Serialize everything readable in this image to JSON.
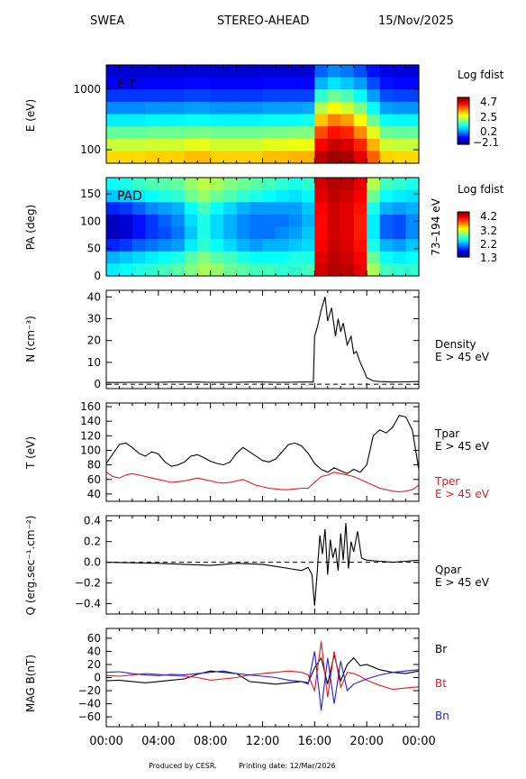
{
  "header": {
    "instrument": "SWEA",
    "spacecraft": "STEREO-AHEAD",
    "date": "15/Nov/2025"
  },
  "footer": {
    "produced": "Produced by CESR.",
    "printing": "Printing date: 12/Mar/2026"
  },
  "colors": {
    "black": "#000000",
    "red": "#e41a1c",
    "blue": "#1f1fe0",
    "axis": "#000000"
  },
  "chart_data": [
    {
      "type": "heatmap",
      "id": "et",
      "label": "E-T",
      "ylabel": "E (eV)",
      "yscale": "log",
      "ylim": [
        60,
        2500
      ],
      "yticks": [
        {
          "v": 100,
          "label": "100"
        },
        {
          "v": 1000,
          "label": "1000"
        }
      ],
      "colorbar": {
        "title": "Log fdist",
        "ticks": [
          "4.7",
          "2.5",
          "0.2",
          "−2.1"
        ]
      },
      "rows": [
        [
          0.08,
          0.08,
          0.08,
          0.08,
          0.08,
          0.08,
          0.08,
          0.08,
          0.08,
          0.08,
          0.08,
          0.08,
          0.08,
          0.08,
          0.08,
          0.08,
          0.22,
          0.26,
          0.24,
          0.2,
          0.14,
          0.1,
          0.09,
          0.09
        ],
        [
          0.12,
          0.12,
          0.12,
          0.12,
          0.12,
          0.12,
          0.13,
          0.13,
          0.12,
          0.12,
          0.12,
          0.12,
          0.13,
          0.13,
          0.13,
          0.13,
          0.3,
          0.35,
          0.32,
          0.28,
          0.2,
          0.14,
          0.13,
          0.13
        ],
        [
          0.18,
          0.18,
          0.18,
          0.18,
          0.18,
          0.18,
          0.19,
          0.19,
          0.18,
          0.18,
          0.18,
          0.18,
          0.19,
          0.19,
          0.19,
          0.19,
          0.42,
          0.48,
          0.45,
          0.38,
          0.28,
          0.2,
          0.19,
          0.19
        ],
        [
          0.26,
          0.26,
          0.26,
          0.27,
          0.27,
          0.27,
          0.28,
          0.28,
          0.27,
          0.27,
          0.27,
          0.27,
          0.28,
          0.28,
          0.28,
          0.29,
          0.55,
          0.62,
          0.58,
          0.5,
          0.38,
          0.28,
          0.27,
          0.27
        ],
        [
          0.36,
          0.36,
          0.36,
          0.37,
          0.37,
          0.37,
          0.38,
          0.38,
          0.37,
          0.37,
          0.37,
          0.37,
          0.38,
          0.38,
          0.38,
          0.39,
          0.68,
          0.75,
          0.72,
          0.62,
          0.48,
          0.38,
          0.37,
          0.37
        ],
        [
          0.47,
          0.47,
          0.47,
          0.48,
          0.48,
          0.48,
          0.49,
          0.49,
          0.48,
          0.48,
          0.48,
          0.48,
          0.49,
          0.49,
          0.5,
          0.5,
          0.8,
          0.86,
          0.84,
          0.74,
          0.6,
          0.48,
          0.47,
          0.47
        ],
        [
          0.57,
          0.57,
          0.57,
          0.58,
          0.58,
          0.58,
          0.6,
          0.6,
          0.58,
          0.58,
          0.58,
          0.58,
          0.6,
          0.6,
          0.61,
          0.61,
          0.88,
          0.93,
          0.91,
          0.84,
          0.7,
          0.58,
          0.57,
          0.57
        ],
        [
          0.66,
          0.66,
          0.66,
          0.67,
          0.67,
          0.67,
          0.69,
          0.69,
          0.67,
          0.67,
          0.67,
          0.67,
          0.69,
          0.69,
          0.7,
          0.7,
          0.94,
          0.97,
          0.96,
          0.9,
          0.78,
          0.67,
          0.66,
          0.66
        ]
      ]
    },
    {
      "type": "heatmap",
      "id": "pad",
      "label": "PAD",
      "ylabel": "PA (deg)",
      "ylim": [
        0,
        180
      ],
      "yticks": [
        0,
        50,
        100,
        150
      ],
      "right_label": "73–194 eV",
      "colorbar": {
        "title": "Log fdist",
        "ticks": [
          "4.2",
          "3.2",
          "2.2",
          "1.3"
        ]
      },
      "rows": [
        [
          0.38,
          0.4,
          0.43,
          0.45,
          0.46,
          0.47,
          0.52,
          0.56,
          0.54,
          0.5,
          0.48,
          0.46,
          0.44,
          0.42,
          0.4,
          0.42,
          0.92,
          0.95,
          0.94,
          0.9,
          0.55,
          0.44,
          0.42,
          0.4
        ],
        [
          0.32,
          0.33,
          0.36,
          0.38,
          0.4,
          0.42,
          0.48,
          0.52,
          0.48,
          0.45,
          0.42,
          0.4,
          0.38,
          0.36,
          0.35,
          0.37,
          0.9,
          0.94,
          0.92,
          0.88,
          0.48,
          0.38,
          0.36,
          0.35
        ],
        [
          0.16,
          0.18,
          0.22,
          0.26,
          0.28,
          0.3,
          0.38,
          0.44,
          0.38,
          0.34,
          0.3,
          0.28,
          0.28,
          0.28,
          0.28,
          0.32,
          0.88,
          0.92,
          0.9,
          0.86,
          0.4,
          0.3,
          0.28,
          0.3
        ],
        [
          0.06,
          0.08,
          0.14,
          0.18,
          0.22,
          0.26,
          0.34,
          0.4,
          0.34,
          0.3,
          0.26,
          0.24,
          0.24,
          0.24,
          0.26,
          0.3,
          0.87,
          0.92,
          0.9,
          0.85,
          0.36,
          0.22,
          0.2,
          0.26
        ],
        [
          0.06,
          0.08,
          0.14,
          0.18,
          0.2,
          0.24,
          0.32,
          0.4,
          0.34,
          0.3,
          0.26,
          0.24,
          0.24,
          0.26,
          0.28,
          0.32,
          0.87,
          0.92,
          0.9,
          0.85,
          0.36,
          0.22,
          0.2,
          0.26
        ],
        [
          0.16,
          0.18,
          0.22,
          0.24,
          0.26,
          0.28,
          0.36,
          0.42,
          0.38,
          0.34,
          0.3,
          0.28,
          0.3,
          0.3,
          0.32,
          0.34,
          0.88,
          0.93,
          0.91,
          0.86,
          0.4,
          0.3,
          0.28,
          0.32
        ],
        [
          0.3,
          0.32,
          0.34,
          0.36,
          0.38,
          0.4,
          0.46,
          0.5,
          0.46,
          0.44,
          0.4,
          0.38,
          0.38,
          0.38,
          0.4,
          0.4,
          0.9,
          0.94,
          0.92,
          0.88,
          0.48,
          0.38,
          0.36,
          0.38
        ],
        [
          0.36,
          0.38,
          0.4,
          0.42,
          0.44,
          0.46,
          0.5,
          0.54,
          0.52,
          0.48,
          0.46,
          0.44,
          0.44,
          0.42,
          0.42,
          0.44,
          0.92,
          0.95,
          0.94,
          0.9,
          0.54,
          0.44,
          0.42,
          0.42
        ]
      ]
    },
    {
      "type": "line",
      "id": "density",
      "ylabel": "N (cm⁻³)",
      "ylim": [
        -2,
        43
      ],
      "yticks": [
        0,
        10,
        20,
        30,
        40
      ],
      "zero_line": true,
      "series": [
        {
          "name": "Density",
          "subtitle": "E > 45 eV",
          "color": "black",
          "x": [
            0,
            1,
            2,
            3,
            4,
            5,
            6,
            7,
            8,
            9,
            10,
            11,
            12,
            13,
            14,
            15,
            15.9,
            16.0,
            16.2,
            16.5,
            16.8,
            17.0,
            17.3,
            17.6,
            17.8,
            18.0,
            18.2,
            18.5,
            18.8,
            19.0,
            19.2,
            19.5,
            19.8,
            20.0,
            20.5,
            21,
            22,
            23,
            24
          ],
          "y": [
            0.8,
            0.8,
            0.9,
            0.9,
            0.9,
            1.0,
            1.0,
            1.0,
            0.9,
            0.9,
            0.9,
            1.0,
            1.0,
            0.9,
            0.9,
            1.0,
            1.0,
            22,
            26,
            34,
            40,
            29,
            35,
            22,
            30,
            24,
            28,
            18,
            22,
            14,
            15,
            10,
            6,
            3,
            1.5,
            1.2,
            1.0,
            1.1,
            1.2
          ]
        }
      ]
    },
    {
      "type": "line",
      "id": "temperature",
      "ylabel": "T (eV)",
      "ylim": [
        30,
        165
      ],
      "yticks": [
        40,
        60,
        80,
        100,
        120,
        140,
        160
      ],
      "series": [
        {
          "name": "Tpar",
          "subtitle": "E > 45 eV",
          "color": "black",
          "x": [
            0,
            0.5,
            1,
            1.5,
            2,
            2.5,
            3,
            3.5,
            4,
            4.5,
            5,
            5.5,
            6,
            6.5,
            7,
            7.5,
            8,
            8.5,
            9,
            9.5,
            10,
            10.5,
            11,
            11.5,
            12,
            12.5,
            13,
            13.5,
            14,
            14.5,
            15,
            15.5,
            16,
            16.5,
            17,
            17.5,
            18,
            18.5,
            19,
            19.5,
            20,
            20.5,
            21,
            21.5,
            22,
            22.5,
            23,
            23.5,
            24
          ],
          "y": [
            82,
            95,
            108,
            110,
            104,
            96,
            92,
            98,
            95,
            84,
            78,
            80,
            84,
            92,
            94,
            90,
            85,
            82,
            80,
            84,
            96,
            104,
            98,
            92,
            86,
            84,
            88,
            98,
            108,
            110,
            106,
            96,
            82,
            74,
            70,
            76,
            72,
            68,
            74,
            70,
            80,
            120,
            128,
            124,
            132,
            148,
            146,
            128,
            74
          ]
        },
        {
          "name": "Tper",
          "subtitle": "E > 45 eV",
          "color": "red",
          "x": [
            0,
            0.5,
            1,
            1.5,
            2,
            2.5,
            3,
            3.5,
            4,
            4.5,
            5,
            5.5,
            6,
            6.5,
            7,
            7.5,
            8,
            8.5,
            9,
            9.5,
            10,
            10.5,
            11,
            11.5,
            12,
            12.5,
            13,
            13.5,
            14,
            14.5,
            15,
            15.5,
            16,
            16.5,
            17,
            17.5,
            18,
            18.5,
            19,
            19.5,
            20,
            20.5,
            21,
            21.5,
            22,
            22.5,
            23,
            23.5,
            24
          ],
          "y": [
            70,
            64,
            62,
            66,
            68,
            66,
            64,
            62,
            60,
            58,
            56,
            57,
            58,
            60,
            62,
            60,
            58,
            56,
            55,
            56,
            58,
            60,
            56,
            52,
            50,
            48,
            47,
            46,
            46,
            47,
            48,
            48,
            56,
            64,
            66,
            70,
            68,
            66,
            64,
            60,
            56,
            52,
            48,
            46,
            44,
            43,
            44,
            46,
            52
          ]
        }
      ]
    },
    {
      "type": "line",
      "id": "heatflux",
      "ylabel": "Q (erg.sec⁻¹.cm⁻²)",
      "ylim": [
        -0.5,
        0.45
      ],
      "yticks": [
        -0.4,
        -0.2,
        0.0,
        0.2,
        0.4
      ],
      "ytick_labels": [
        "−0.4",
        "−0.2",
        "0.0",
        "0.2",
        "0.4"
      ],
      "zero_line": true,
      "series": [
        {
          "name": "Qpar",
          "subtitle": "E > 45 eV",
          "color": "black",
          "x": [
            0,
            2,
            4,
            6,
            8,
            10,
            12,
            13,
            14,
            15,
            15.5,
            15.8,
            16.0,
            16.2,
            16.4,
            16.6,
            16.8,
            17.0,
            17.2,
            17.4,
            17.6,
            17.8,
            18.0,
            18.2,
            18.4,
            18.6,
            18.8,
            19.0,
            19.3,
            19.6,
            20.0,
            21,
            22,
            23,
            24
          ],
          "y": [
            0.0,
            -0.005,
            -0.01,
            -0.02,
            -0.03,
            -0.01,
            -0.02,
            -0.04,
            -0.06,
            -0.08,
            -0.05,
            -0.12,
            -0.42,
            -0.1,
            0.26,
            0.08,
            0.32,
            -0.12,
            0.22,
            0.04,
            0.14,
            -0.08,
            0.28,
            0.02,
            0.38,
            -0.06,
            0.2,
            0.1,
            0.3,
            0.04,
            0.02,
            0.01,
            0.0,
            0.01,
            0.02
          ]
        }
      ]
    },
    {
      "type": "line",
      "id": "mag",
      "ylabel": "MAG B(nT)",
      "ylim": [
        -75,
        75
      ],
      "yticks": [
        -60,
        -40,
        -20,
        0,
        20,
        40,
        60
      ],
      "ytick_labels": [
        "−60",
        "−40",
        "−20",
        "0",
        "20",
        "40",
        "60"
      ],
      "series": [
        {
          "name": "Br",
          "color": "black",
          "x": [
            0,
            1,
            2,
            3,
            4,
            5,
            6,
            7,
            8,
            9,
            10,
            11,
            12,
            13,
            14,
            15,
            15.5,
            16.0,
            16.5,
            17.0,
            17.5,
            18.0,
            18.5,
            19.0,
            19.5,
            20.0,
            21,
            22,
            23,
            24
          ],
          "y": [
            -5,
            -4,
            -6,
            -8,
            -6,
            -4,
            -2,
            5,
            10,
            8,
            6,
            -6,
            -8,
            -10,
            -8,
            -6,
            -8,
            15,
            30,
            -10,
            35,
            -5,
            20,
            30,
            18,
            20,
            12,
            8,
            6,
            10
          ]
        },
        {
          "name": "Bt",
          "color": "red",
          "x": [
            0,
            1,
            2,
            3,
            4,
            5,
            6,
            7,
            8,
            9,
            10,
            11,
            12,
            13,
            14,
            15,
            15.5,
            16.0,
            16.5,
            17.0,
            17.5,
            18.0,
            18.5,
            19.0,
            19.5,
            20.0,
            21,
            22,
            23,
            24
          ],
          "y": [
            3,
            2,
            4,
            6,
            5,
            3,
            2,
            0,
            -4,
            -2,
            0,
            4,
            6,
            8,
            10,
            8,
            4,
            -20,
            55,
            -30,
            40,
            -15,
            8,
            6,
            2,
            -4,
            -12,
            -18,
            -16,
            -14
          ]
        },
        {
          "name": "Bn",
          "color": "blue",
          "x": [
            0,
            1,
            2,
            3,
            4,
            5,
            6,
            7,
            8,
            9,
            10,
            11,
            12,
            13,
            14,
            15,
            15.5,
            16.0,
            16.5,
            17.0,
            17.5,
            18.0,
            18.5,
            19.0,
            19.5,
            20.0,
            21,
            22,
            23,
            24
          ],
          "y": [
            8,
            9,
            6,
            4,
            3,
            5,
            4,
            6,
            8,
            10,
            6,
            4,
            2,
            0,
            -4,
            -6,
            -10,
            40,
            -50,
            30,
            -40,
            25,
            -20,
            -10,
            -6,
            -2,
            4,
            8,
            10,
            12
          ]
        }
      ]
    }
  ],
  "xaxis": {
    "ticks": [
      0,
      4,
      8,
      12,
      16,
      20,
      24
    ],
    "labels": [
      "00:00",
      "04:00",
      "08:00",
      "12:00",
      "16:00",
      "20:00",
      "00:00"
    ],
    "xlim": [
      0,
      24
    ]
  }
}
